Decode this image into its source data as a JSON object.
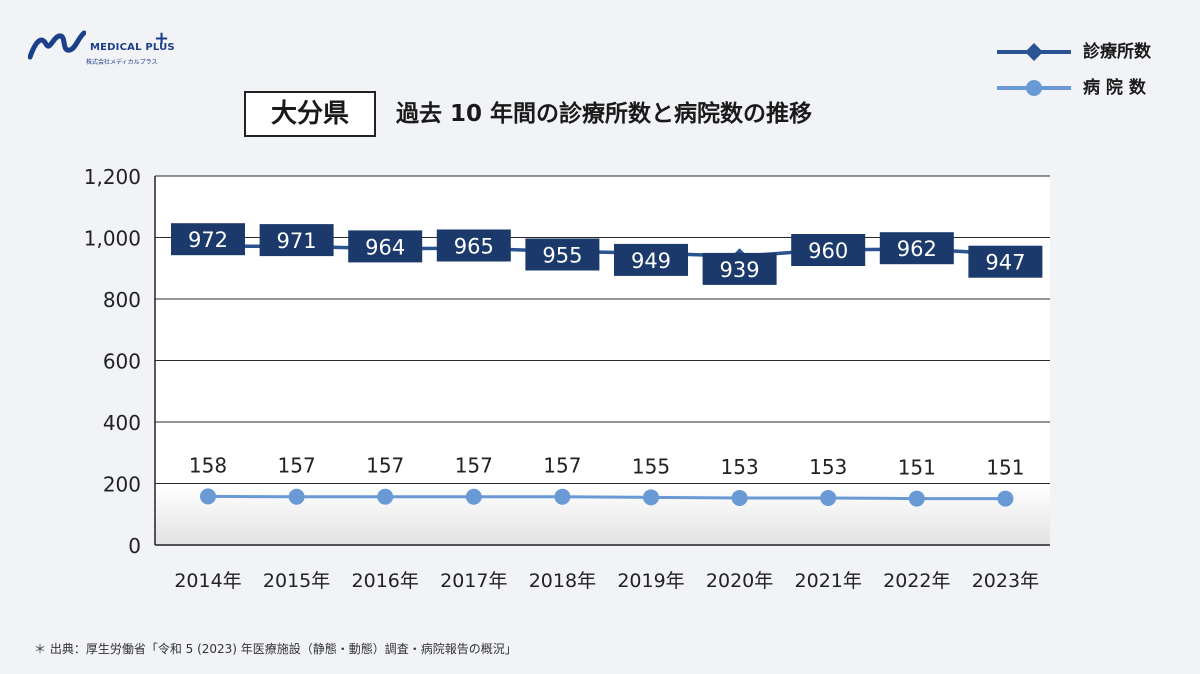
{
  "header": {
    "logo_name": "MEDICAL PLUS",
    "logo_plus": "+",
    "logo_sub": "株式会社メディカルプラス",
    "title_prefecture": "大分県",
    "title_main": "過去 10 年間の診療所数と病院数の推移"
  },
  "legend": {
    "clinics": "診療所数",
    "hospitals": "病 院 数"
  },
  "colors": {
    "clinics_line": "#2a5491",
    "clinics_label_bg": "#1b3a6b",
    "hospitals_line": "#6a9ad6"
  },
  "chart_data": {
    "type": "line",
    "categories": [
      "2014年",
      "2015年",
      "2016年",
      "2017年",
      "2018年",
      "2019年",
      "2020年",
      "2021年",
      "2022年",
      "2023年"
    ],
    "series": [
      {
        "name": "診療所数",
        "marker": "diamond",
        "values": [
          972,
          971,
          964,
          965,
          955,
          949,
          939,
          960,
          962,
          947
        ]
      },
      {
        "name": "病 院 数",
        "marker": "circle",
        "values": [
          158,
          157,
          157,
          157,
          157,
          155,
          153,
          153,
          151,
          151
        ]
      }
    ],
    "ylim": [
      0,
      1200
    ],
    "yticks": [
      "0",
      "200",
      "400",
      "600",
      "800",
      "1,000",
      "1,200"
    ],
    "grid": true,
    "legend_position": "top-right"
  },
  "source": "＊ 出典：厚生労働省「令和 5 (2023) 年医療施設（静態・動態）調査・病院報告の概況」"
}
